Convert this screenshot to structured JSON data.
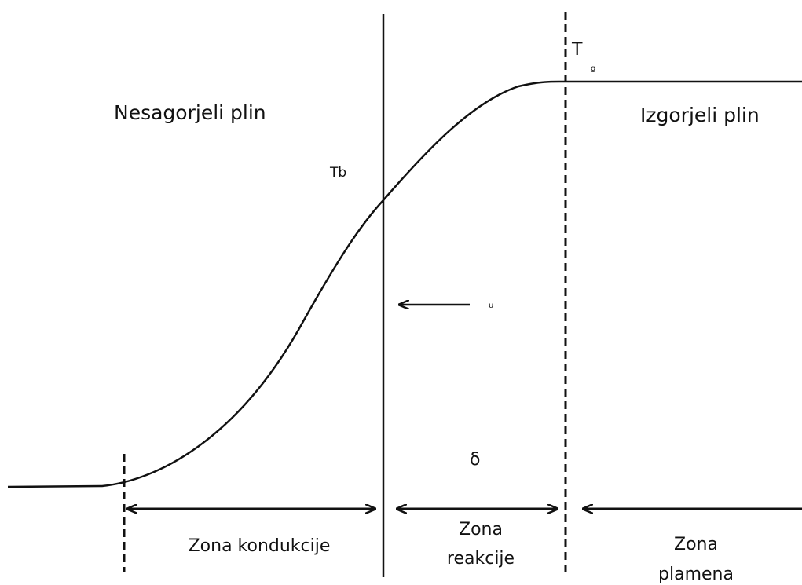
{
  "regions": {
    "unburned": "Nesagorjeli plin",
    "burned": "Izgorjeli plin"
  },
  "temperatures": {
    "tb": "Tb",
    "tg_symbol": "T",
    "tg_subscript": "g"
  },
  "velocity": {
    "subscript": "u"
  },
  "thickness": "δ",
  "zones": {
    "conduction": [
      "Zona kondukcije"
    ],
    "reaction": [
      "Zona",
      "reakcije"
    ],
    "flame": [
      "Zona",
      "plamena"
    ]
  }
}
